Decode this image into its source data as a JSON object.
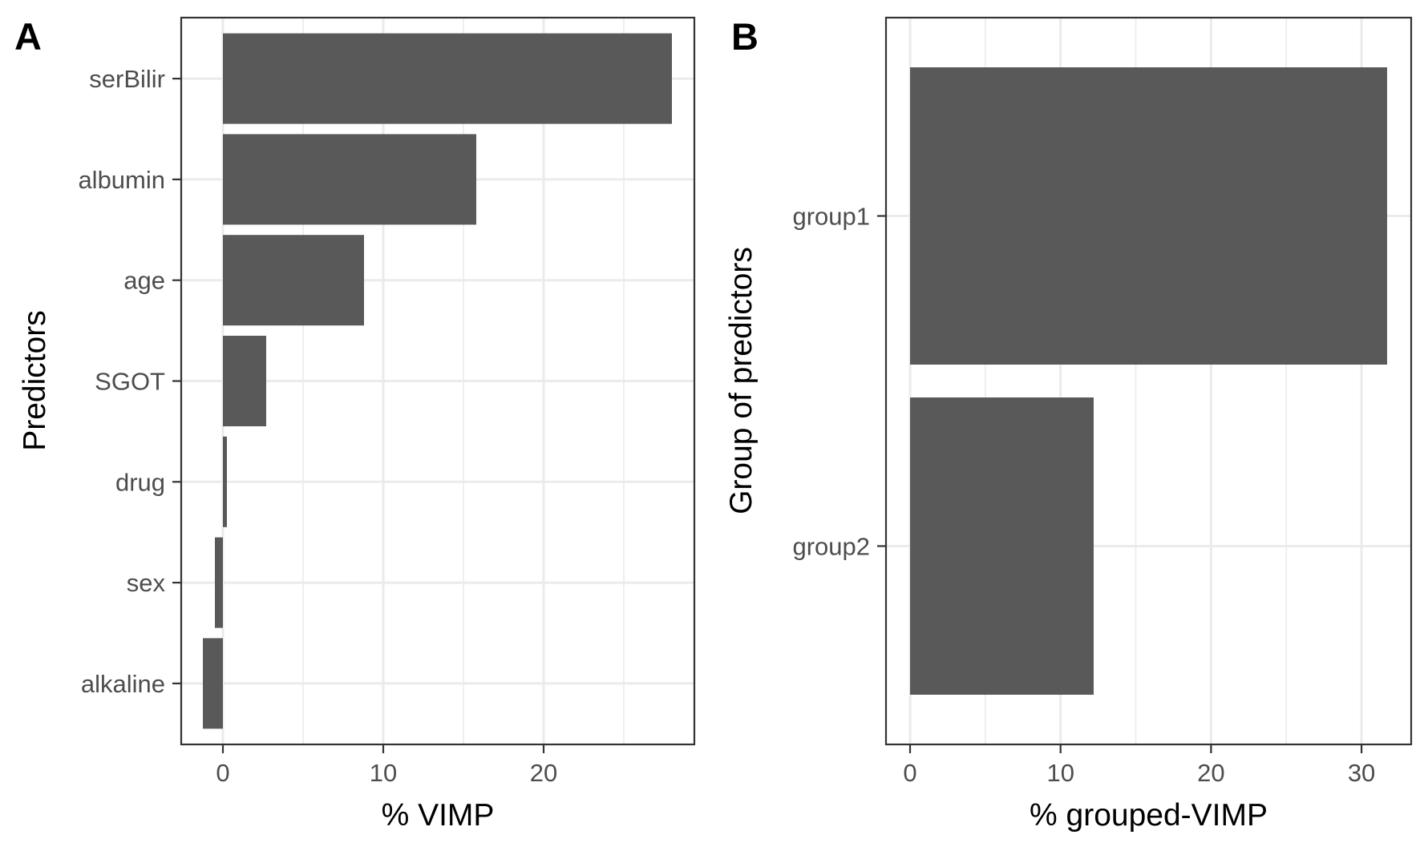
{
  "chart_data": [
    {
      "type": "bar",
      "orientation": "horizontal",
      "panel_tag": "A",
      "title": "",
      "xlabel": "% VIMP",
      "ylabel": "Predictors",
      "categories": [
        "serBilir",
        "albumin",
        "age",
        "SGOT",
        "drug",
        "sex",
        "alkaline"
      ],
      "values": [
        28.0,
        15.8,
        8.8,
        2.7,
        0.25,
        -0.5,
        -1.25
      ],
      "xlim": [
        -2.6,
        29.4
      ],
      "xticks": [
        0,
        10,
        20
      ],
      "xtick_labels": [
        "0",
        "10",
        "20"
      ],
      "grid": true,
      "bar_color": "#595959"
    },
    {
      "type": "bar",
      "orientation": "horizontal",
      "panel_tag": "B",
      "title": "",
      "xlabel": "% grouped-VIMP",
      "ylabel": "Group of predictors",
      "categories": [
        "group1",
        "group2"
      ],
      "values": [
        31.7,
        12.2
      ],
      "xlim": [
        -1.6,
        33.3
      ],
      "xticks": [
        0,
        10,
        20,
        30
      ],
      "xtick_labels": [
        "0",
        "10",
        "20",
        "30"
      ],
      "grid": true,
      "bar_color": "#595959"
    }
  ]
}
